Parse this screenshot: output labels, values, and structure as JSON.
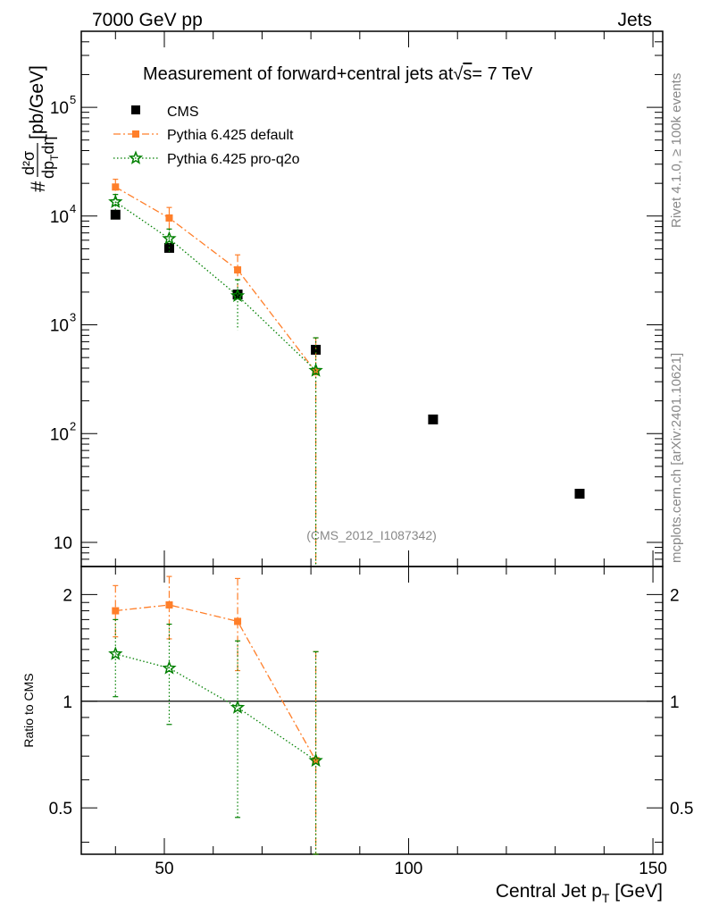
{
  "header": {
    "left": "7000 GeV pp",
    "right": "Jets"
  },
  "side_labels": {
    "rivet": "Rivet 4.1.0, ≥ 100k events",
    "source": "mcplots.cern.ch [arXiv:2401.10621]"
  },
  "chart_data": {
    "type": "scatter",
    "title": "Measurement of forward+central jets at√s= 7 TeV",
    "title_prefix": "Measurement of forward+central jets at",
    "title_sqrt_symbol": "√",
    "title_sqrt_arg": "s",
    "title_suffix": "= 7 TeV",
    "analysis_tag": "(CMS_2012_I1087342)",
    "xlabel": "Central Jet p",
    "xlabel_sub": "T",
    "xlabel_unit": " [GeV]",
    "ylabel_prefix": "#",
    "ylabel_num": "d²σ",
    "ylabel_den": "dp",
    "ylabel_den_sub": "T",
    "ylabel_den_tail": "dη",
    "ylabel_unit": "[pb/GeV]",
    "ratio_ylabel": "Ratio to CMS",
    "xlim": [
      33,
      152
    ],
    "main_ylim": [
      6,
      500000
    ],
    "main_yscale": "log",
    "ratio_ylim": [
      0.37,
      2.4
    ],
    "ratio_yscale": "log",
    "x_ticks": [
      {
        "value": 50,
        "label": "50"
      },
      {
        "value": 100,
        "label": "100"
      },
      {
        "value": 150,
        "label": "150"
      }
    ],
    "main_y_ticks": [
      {
        "value": 10,
        "label": "10",
        "sup": ""
      },
      {
        "value": 100,
        "label": "10",
        "sup": "2"
      },
      {
        "value": 1000,
        "label": "10",
        "sup": "3"
      },
      {
        "value": 10000,
        "label": "10",
        "sup": "4"
      },
      {
        "value": 100000,
        "label": "10",
        "sup": "5"
      }
    ],
    "ratio_y_ticks": [
      {
        "value": 0.5,
        "label": "0.5"
      },
      {
        "value": 1,
        "label": "1"
      },
      {
        "value": 2,
        "label": "2"
      }
    ],
    "legend_position": "top-left",
    "series": [
      {
        "name": "CMS",
        "color": "#000000",
        "marker": "square",
        "line": "none",
        "x": [
          40,
          51,
          65,
          81,
          105,
          135
        ],
        "y": [
          10300,
          5100,
          1900,
          590,
          135,
          28
        ],
        "yerr": [
          300,
          200,
          120,
          60,
          8,
          2
        ]
      },
      {
        "name": "Pythia 6.425 default",
        "color": "#ff7f2a",
        "marker": "square",
        "line": "dashdot",
        "x": [
          40,
          51,
          65,
          81
        ],
        "y": [
          18500,
          9600,
          3200,
          370
        ],
        "y_up": [
          21800,
          12000,
          4400,
          760
        ],
        "y_down": [
          15500,
          7500,
          2200,
          6
        ],
        "ratio": [
          1.8,
          1.87,
          1.68,
          0.68
        ],
        "ratio_up": [
          2.12,
          2.25,
          2.22,
          1.38
        ],
        "ratio_down": [
          1.52,
          1.5,
          1.22,
          0.37
        ]
      },
      {
        "name": "Pythia 6.425 pro-q2o",
        "color": "#008000",
        "marker": "star",
        "line": "dotted",
        "x": [
          40,
          51,
          65,
          81
        ],
        "y": [
          13500,
          6200,
          1850,
          380
        ],
        "y_up": [
          15800,
          7600,
          2600,
          760
        ],
        "y_down": [
          11300,
          4500,
          900,
          6
        ],
        "ratio": [
          1.36,
          1.24,
          0.96,
          0.68
        ],
        "ratio_up": [
          1.7,
          1.65,
          1.48,
          1.38
        ],
        "ratio_down": [
          1.03,
          0.86,
          0.47,
          0.37
        ]
      }
    ]
  }
}
